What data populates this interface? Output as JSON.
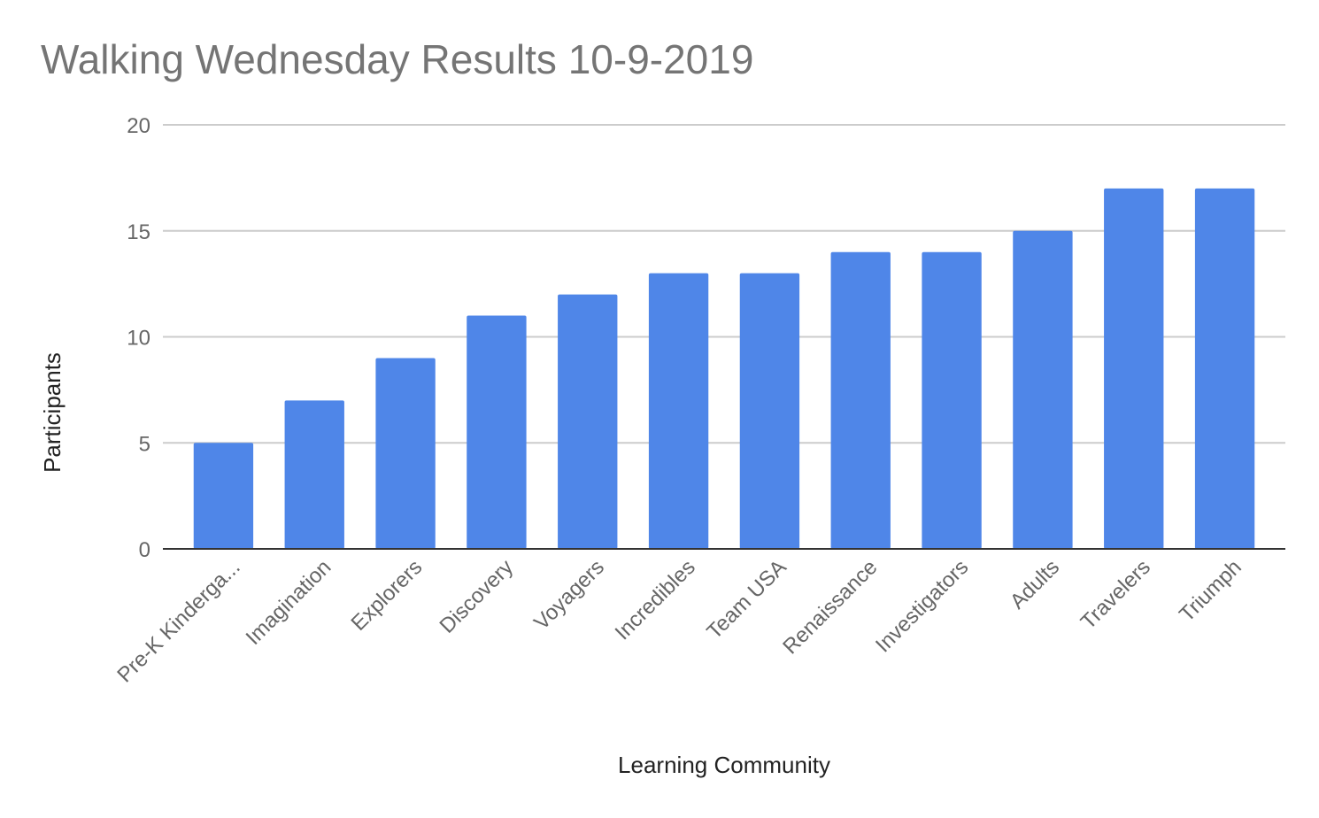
{
  "chart_data": {
    "type": "bar",
    "title": "Walking Wednesday Results 10-9-2019",
    "xlabel": "Learning Community",
    "ylabel": "Participants",
    "categories": [
      "Pre-K Kinderga...",
      "Imagination",
      "Explorers",
      "Discovery",
      "Voyagers",
      "Incredibles",
      "Team USA",
      "Renaissance",
      "Investigators",
      "Adults",
      "Travelers",
      "Triumph"
    ],
    "values": [
      5,
      7,
      9,
      11,
      12,
      13,
      13,
      14,
      14,
      15,
      17,
      17
    ],
    "ylim": [
      0,
      20
    ],
    "yticks": [
      "0",
      "5",
      "10",
      "15",
      "20"
    ],
    "grid": true,
    "legend": "none",
    "colors": {
      "bar": "#4f86e8",
      "grid": "#cccccc",
      "baseline": "#333333"
    }
  }
}
